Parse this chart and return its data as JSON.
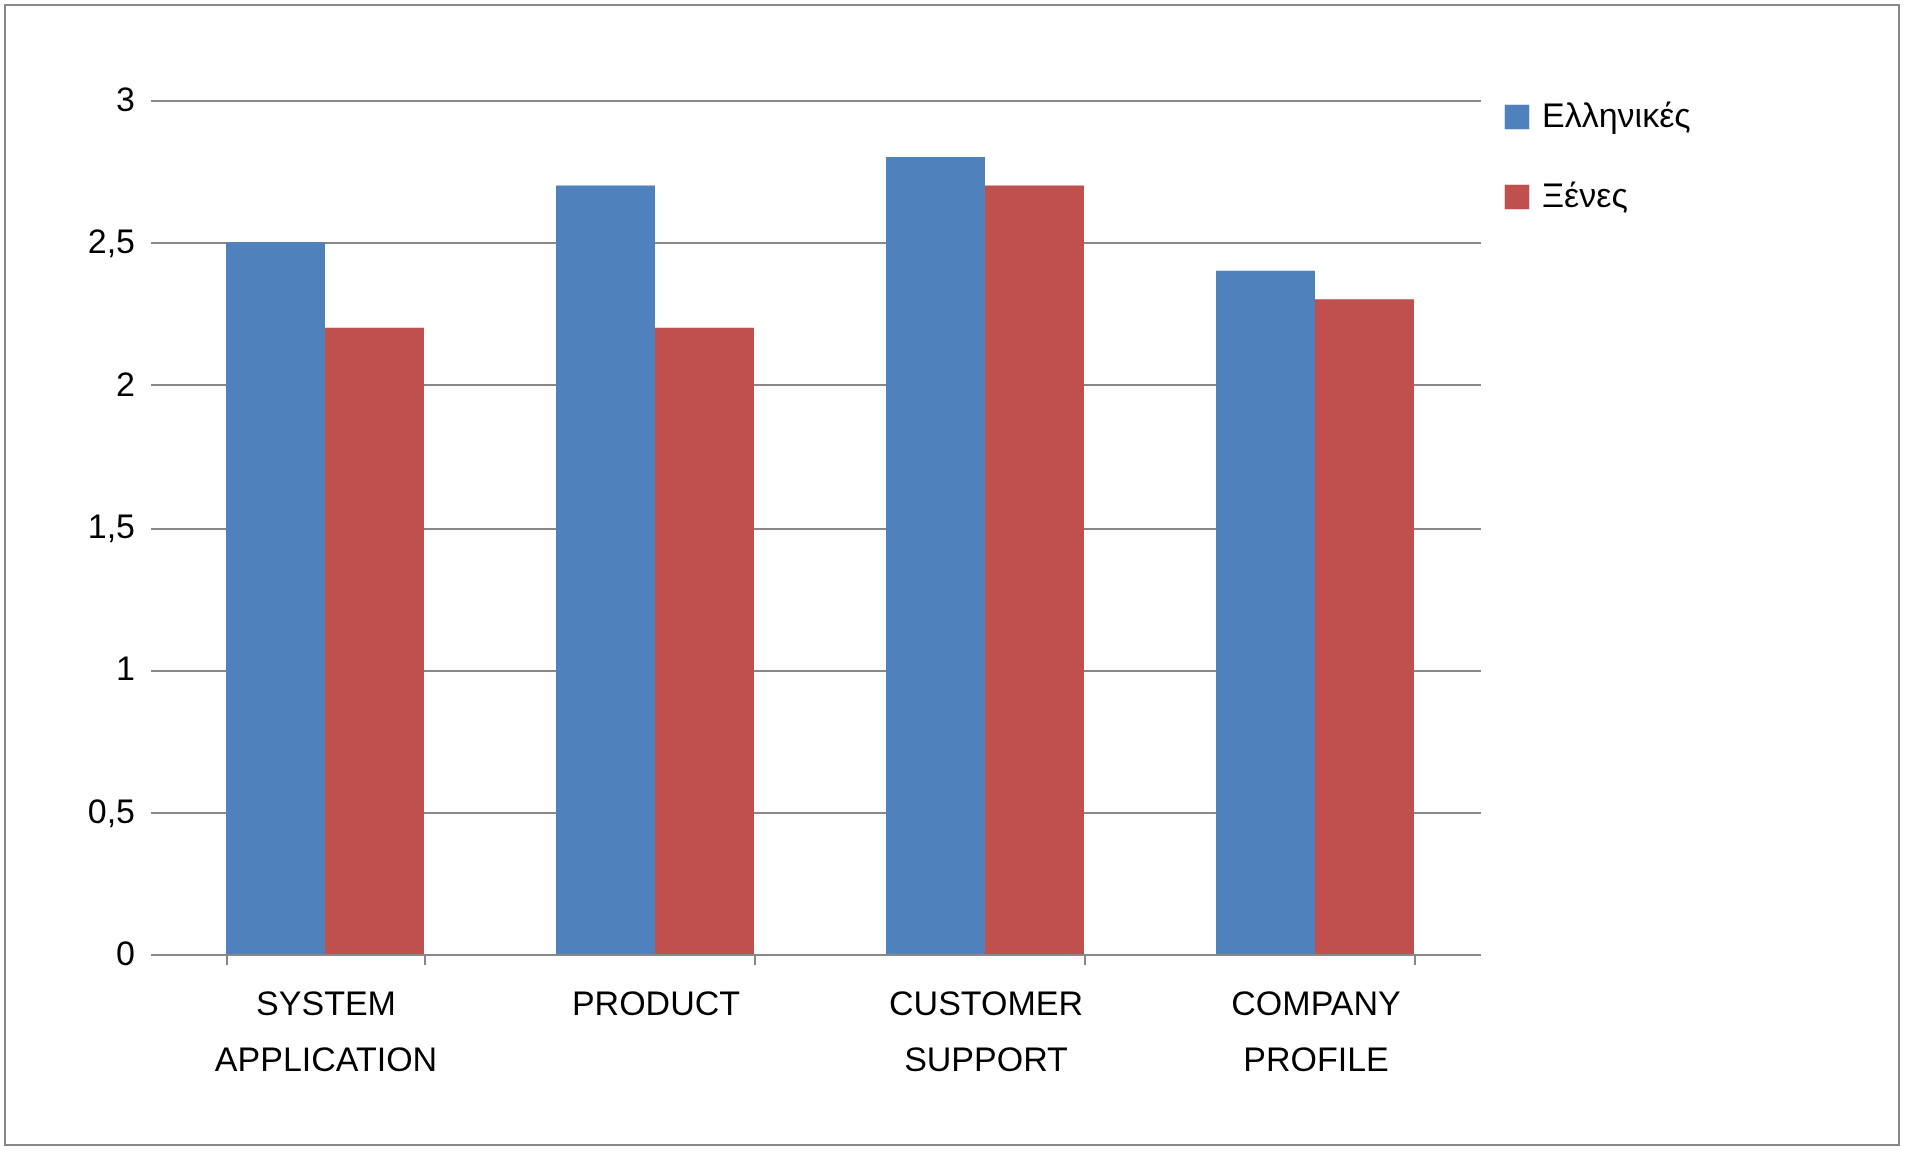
{
  "chart_data": {
    "type": "bar",
    "categories": [
      "SYSTEM APPLICATION",
      "PRODUCT",
      "CUSTOMER SUPPORT",
      "COMPANY PROFILE"
    ],
    "series": [
      {
        "name": "Ελληνικές",
        "color": "#4f81bd",
        "values": [
          2.5,
          2.7,
          2.8,
          2.4
        ]
      },
      {
        "name": "Ξένες",
        "color": "#c0504d",
        "values": [
          2.2,
          2.2,
          2.7,
          2.3
        ]
      }
    ],
    "ylim": [
      0,
      3
    ],
    "yticks": [
      0,
      {
        "value": 0.5,
        "label": "0,5"
      },
      1,
      {
        "value": 1.5,
        "label": "1,5"
      },
      2,
      {
        "value": 2.5,
        "label": "2,5"
      },
      3
    ],
    "grid": "y",
    "legend": "right"
  }
}
